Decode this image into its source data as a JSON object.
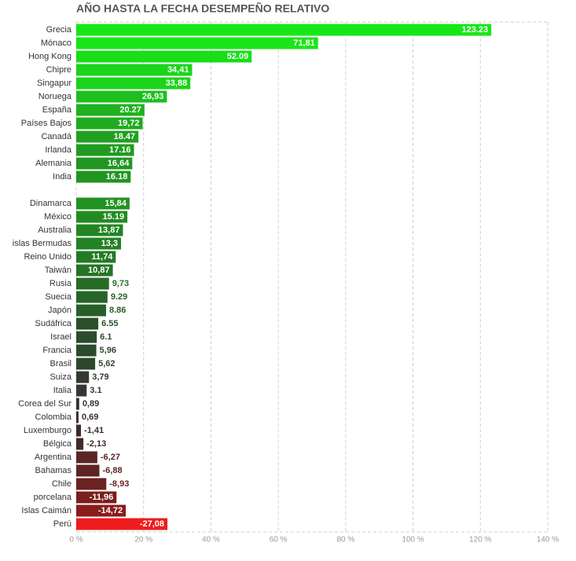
{
  "chart_data": {
    "type": "bar",
    "orientation": "horizontal",
    "title": "AÑO HASTA LA FECHA DESEMPEÑO RELATIVO",
    "categories": [
      "Grecia",
      "Mónaco",
      "Hong Kong",
      "Chipre",
      "Singapur",
      "Noruega",
      "España",
      "Países Bajos",
      "Canadá",
      "Irlanda",
      "Alemania",
      "India",
      null,
      "Dinamarca",
      "México",
      "Australia",
      "islas Bermudas",
      "Reino Unido",
      "Taiwán",
      "Rusia",
      "Suecia",
      "Japón",
      "Sudáfrica",
      "Israel",
      "Francia",
      "Brasil",
      "Suiza",
      "Italia",
      "Corea del Sur",
      "Colombia",
      "Luxemburgo",
      "Bélgica",
      "Argentina",
      "Bahamas",
      "Chile",
      "porcelana",
      "Islas Caimán",
      "Perú"
    ],
    "values": [
      123.23,
      71.81,
      52.09,
      34.41,
      33.88,
      26.93,
      20.27,
      19.72,
      18.47,
      17.16,
      16.64,
      16.18,
      null,
      15.84,
      15.19,
      13.87,
      13.3,
      11.74,
      10.87,
      9.73,
      9.29,
      8.86,
      6.55,
      6.1,
      5.96,
      5.62,
      3.79,
      3.1,
      0.89,
      0.69,
      -1.41,
      -2.13,
      -6.27,
      -6.88,
      -8.93,
      -11.96,
      -14.72,
      -27.08
    ],
    "value_labels": [
      "123.23",
      "71,81",
      "52.09",
      "34,41",
      "33,88",
      "26,93",
      "20.27",
      "19,72",
      "18.47",
      "17.16",
      "16,64",
      "16.18",
      null,
      "15,84",
      "15.19",
      "13,87",
      "13,3",
      "11,74",
      "10,87",
      "9,73",
      "9.29",
      "8.86",
      "6.55",
      "6.1",
      "5,96",
      "5,62",
      "3,79",
      "3.1",
      "0,89",
      "0,69",
      "-1,41",
      "-2,13",
      "-6,27",
      "-6,88",
      "-8,93",
      "-11,96",
      "-14,72",
      "-27,08"
    ],
    "colors": [
      "#19e619",
      "#19e619",
      "#19dd19",
      "#1bd41b",
      "#1bd41b",
      "#1fbe1f",
      "#20b020",
      "#20aa20",
      "#20a020",
      "#219a21",
      "#219621",
      "#229422",
      null,
      "#229222",
      "#228c22",
      "#238423",
      "#238223",
      "#247a24",
      "#257425",
      "#266c26",
      "#276427",
      "#285e28",
      "#2b4f2b",
      "#2c4c2c",
      "#2c4a2c",
      "#2d472d",
      "#323a32",
      "#343634",
      "#383038",
      "#383038",
      "#3d2a2a",
      "#402a2a",
      "#5a2626",
      "#5e2424",
      "#6a2222",
      "#7a1e1e",
      "#8a1c1c",
      "#ee1c1c"
    ],
    "xlim": [
      0,
      140
    ],
    "xticks": [
      {
        "value": 0,
        "label": "0 %"
      },
      {
        "value": 20,
        "label": "20 %"
      },
      {
        "value": 40,
        "label": "40 %"
      },
      {
        "value": 60,
        "label": "60 %"
      },
      {
        "value": 80,
        "label": "80 %"
      },
      {
        "value": 100,
        "label": "100 %"
      },
      {
        "value": 120,
        "label": "120 %"
      },
      {
        "value": 140,
        "label": "140 %"
      }
    ],
    "grid": true
  }
}
